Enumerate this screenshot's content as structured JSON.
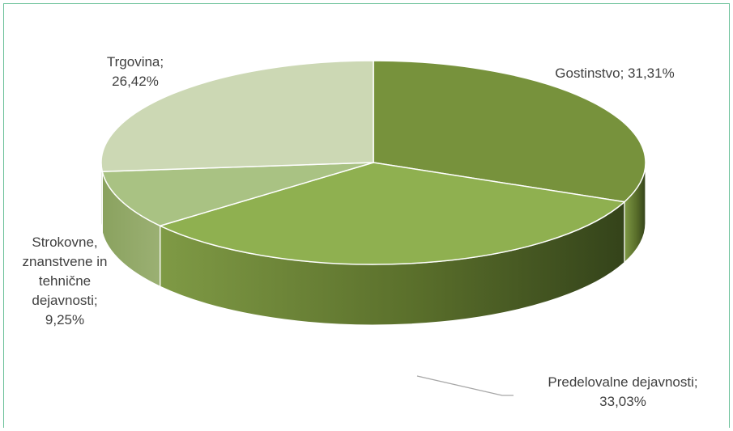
{
  "chart_data": {
    "type": "pie",
    "title": "",
    "style": "3d",
    "slices": [
      {
        "name": "Gostinstvo",
        "value": 31.31,
        "label_lines": [
          "Gostinstvo; 31,31%"
        ],
        "color": "#77923c"
      },
      {
        "name": "Predelovalne dejavnosti",
        "value": 33.03,
        "label_lines": [
          "Predelovalne dejavnosti;",
          "33,03%"
        ],
        "color": "#8fb050"
      },
      {
        "name": "Strokovne, znanstvene in tehnične dejavnosti",
        "value": 9.25,
        "label_lines": [
          "Strokovne,",
          "znanstvene in",
          "tehnične",
          "dejavnosti;",
          "9,25%"
        ],
        "color": "#a9c283"
      },
      {
        "name": "Trgovina",
        "value": 26.42,
        "label_lines": [
          "Trgovina;",
          "26,42%"
        ],
        "color": "#ccd8b4"
      }
    ]
  }
}
